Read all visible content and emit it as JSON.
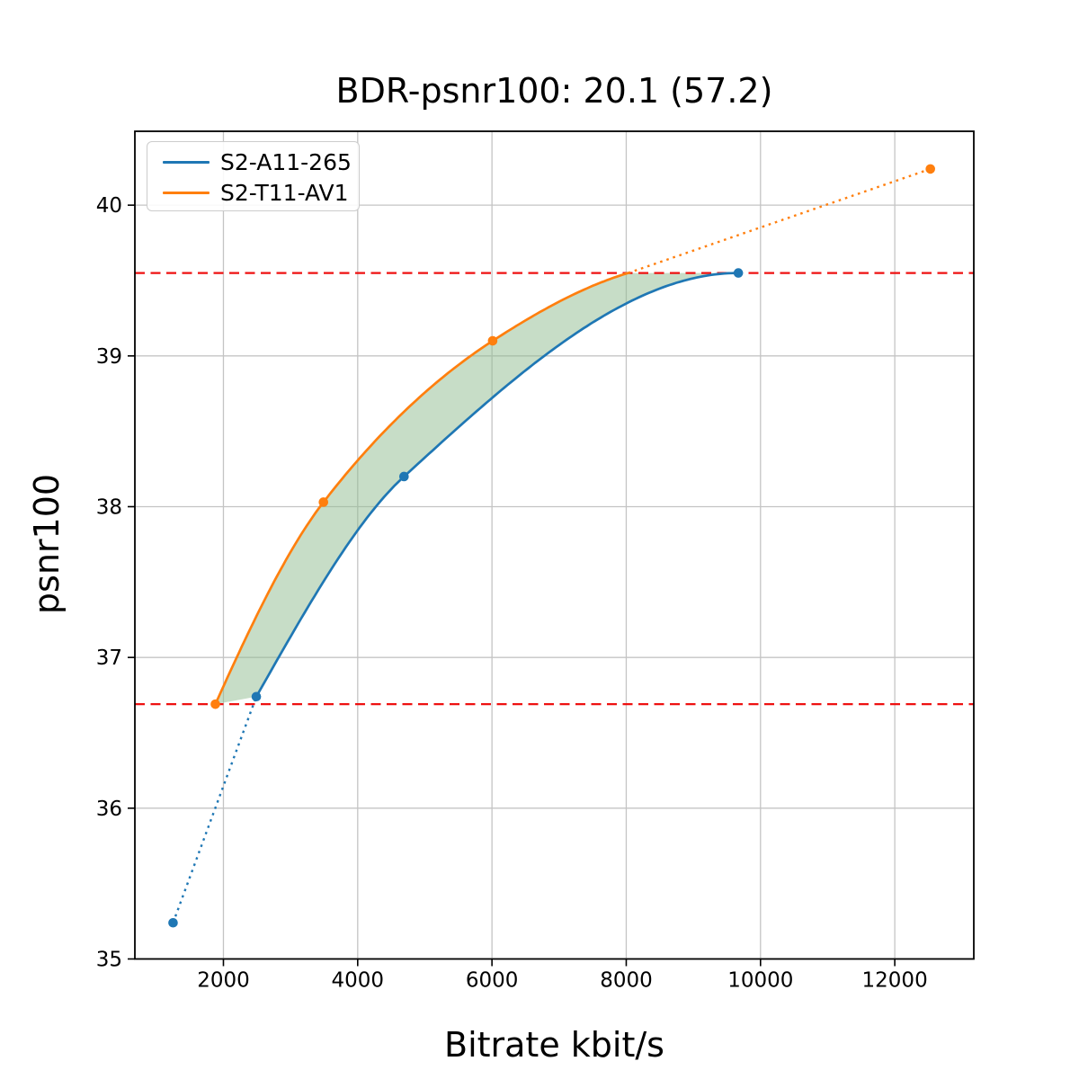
{
  "chart_data": {
    "type": "line",
    "title": "BDR-psnr100: 20.1 (57.2)",
    "xlabel": "Bitrate kbit/s",
    "ylabel": "psnr100",
    "xlim": [
      681,
      13177
    ],
    "ylim": [
      35.0,
      40.49
    ],
    "xticks": [
      2000,
      4000,
      6000,
      8000,
      10000,
      12000
    ],
    "yticks": [
      35,
      36,
      37,
      38,
      39,
      40
    ],
    "grid": true,
    "grid_color": "#c4c4c4",
    "legend_position": "upper left",
    "series": [
      {
        "name": "S2-A11-265",
        "color": "#1f77b4",
        "points": [
          [
            1250,
            35.24
          ],
          [
            2490,
            36.74
          ],
          [
            4690,
            38.2
          ],
          [
            9670,
            39.55
          ]
        ],
        "solid_points": [
          [
            2490,
            36.74
          ],
          [
            4690,
            38.2
          ],
          [
            9670,
            39.55
          ]
        ],
        "dotted_segments": [
          [
            [
              1250,
              35.24
            ],
            [
              2490,
              36.74
            ]
          ]
        ]
      },
      {
        "name": "S2-T11-AV1",
        "color": "#ff7f0e",
        "points": [
          [
            1880,
            36.69
          ],
          [
            3490,
            38.03
          ],
          [
            6010,
            39.1
          ],
          [
            12530,
            40.24
          ]
        ],
        "solid_points": [
          [
            1880,
            36.69
          ],
          [
            3490,
            38.03
          ],
          [
            6010,
            39.1
          ],
          [
            8030,
            39.55
          ]
        ],
        "dotted_segments": [
          [
            [
              8030,
              39.55
            ],
            [
              12530,
              40.24
            ]
          ]
        ]
      }
    ],
    "hlines": [
      {
        "y": 36.69,
        "color": "#ee1111",
        "style": "dashed"
      },
      {
        "y": 39.55,
        "color": "#ee1111",
        "style": "dashed"
      }
    ],
    "fill_between": {
      "lower_series": 0,
      "upper_series": 1,
      "color": "#8fbc8f",
      "opacity": 0.5,
      "y_range": [
        36.69,
        39.55
      ]
    }
  }
}
